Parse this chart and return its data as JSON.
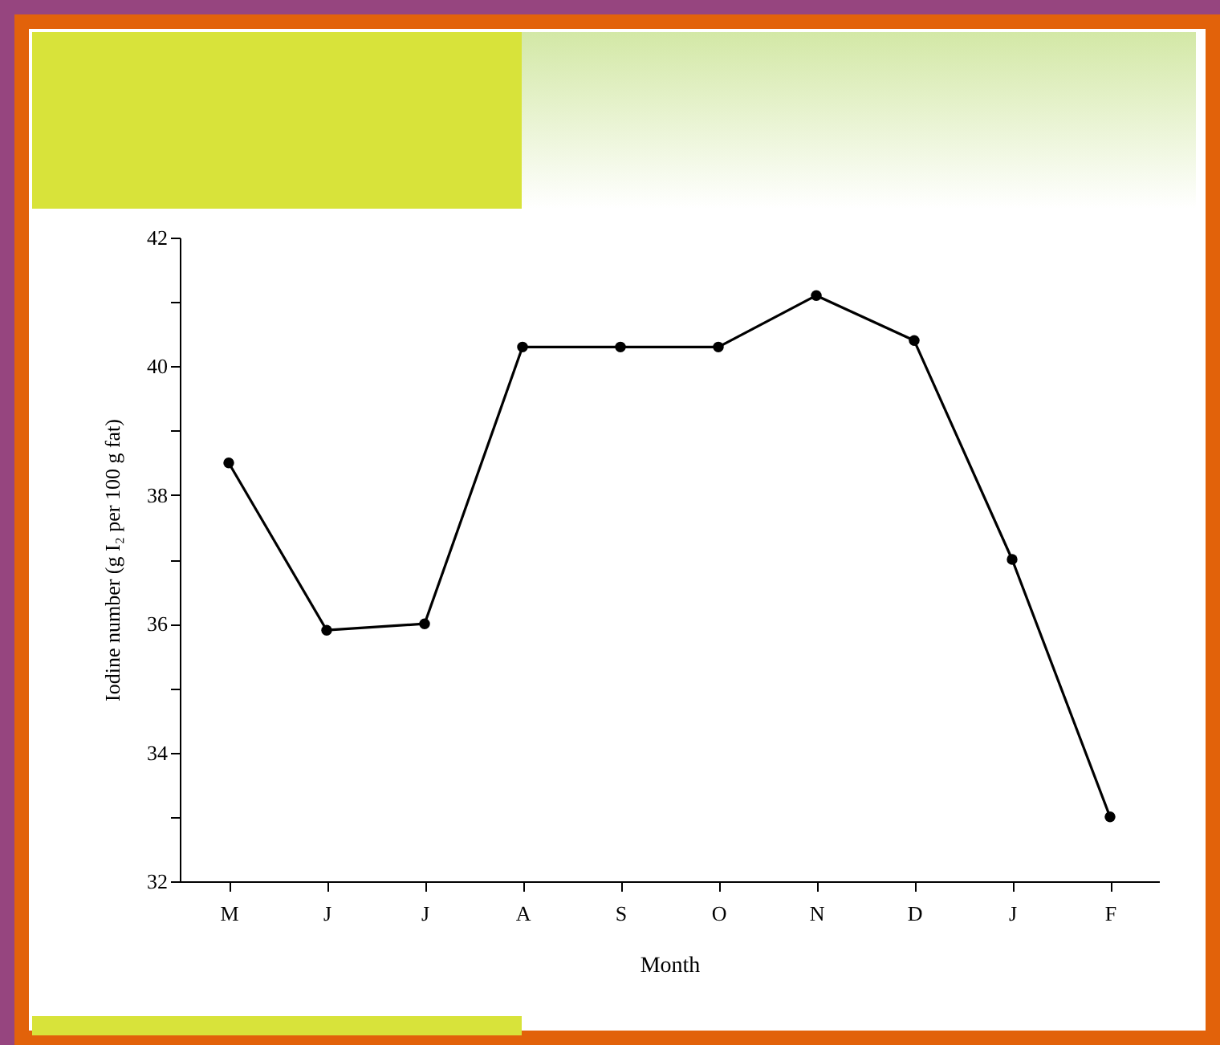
{
  "chart_data": {
    "type": "line",
    "xlabel": "Month",
    "ylabel": "Iodine number (g I₂ per 100 g fat)",
    "categories": [
      "M",
      "J",
      "J",
      "A",
      "S",
      "O",
      "N",
      "D",
      "J",
      "F"
    ],
    "series": [
      {
        "color": "#000000",
        "values": [
          38.5,
          35.9,
          36.0,
          40.3,
          40.3,
          40.3,
          41.1,
          40.4,
          37.0,
          33.0
        ]
      }
    ],
    "ylim": [
      32,
      42
    ],
    "yticks": [
      32,
      {
        "value": 33,
        "label": null
      },
      34,
      {
        "value": 35,
        "label": null
      },
      36,
      {
        "value": 37,
        "label": null
      },
      38,
      {
        "value": 39,
        "label": null
      },
      40,
      {
        "value": 41,
        "label": null
      },
      42
    ],
    "marker": "circle",
    "line_style": "solid",
    "grid": false,
    "legend": false
  }
}
